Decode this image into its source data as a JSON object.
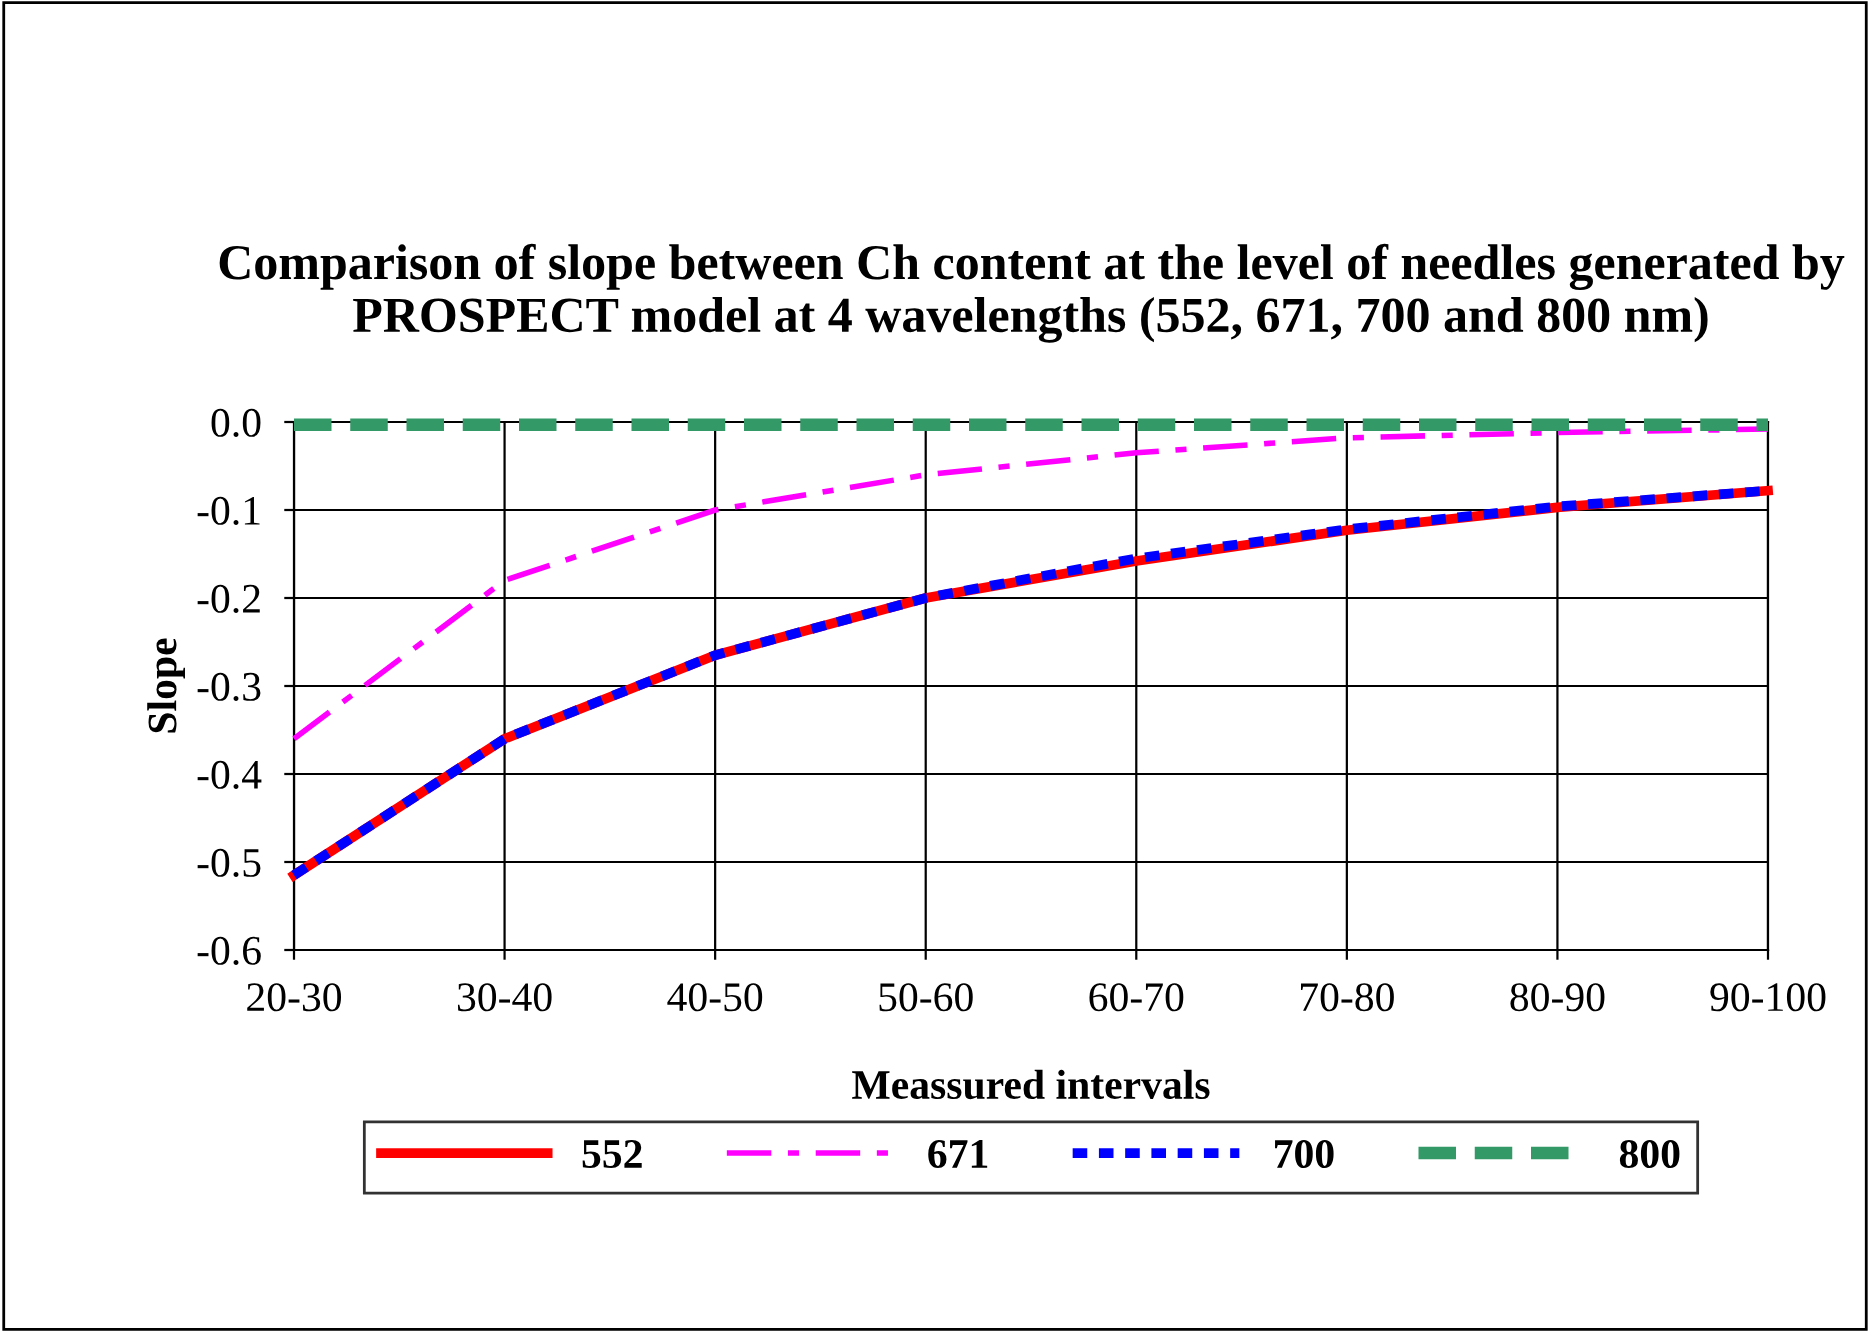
{
  "chart_data": {
    "type": "line",
    "title": "Comparison of slope between Ch content at the level of needles generated by PROSPECT model at 4 wavelengths (552, 671, 700 and 800 nm)",
    "xlabel": "Meassured intervals",
    "ylabel": "Slope",
    "categories": [
      "20-30",
      "30-40",
      "40-50",
      "50-60",
      "60-70",
      "70-80",
      "80-90",
      "90-100"
    ],
    "series": [
      {
        "name": "552",
        "color": "#ff0000",
        "line_style": "solid",
        "values": [
          -0.515,
          -0.36,
          -0.265,
          -0.2,
          -0.158,
          -0.123,
          -0.097,
          -0.078
        ]
      },
      {
        "name": "671",
        "color": "#ff00ff",
        "line_style": "dashed",
        "values": [
          -0.36,
          -0.18,
          -0.1,
          -0.06,
          -0.035,
          -0.018,
          -0.012,
          -0.008
        ]
      },
      {
        "name": "700",
        "color": "#0000ff",
        "line_style": "dotted",
        "values": [
          -0.515,
          -0.36,
          -0.265,
          -0.2,
          -0.155,
          -0.122,
          -0.096,
          -0.078
        ]
      },
      {
        "name": "800",
        "color": "#339966",
        "line_style": "dashed",
        "values": [
          -0.003,
          -0.003,
          -0.003,
          -0.003,
          -0.003,
          -0.003,
          -0.003,
          -0.003
        ]
      }
    ],
    "ylim": [
      -0.6,
      0.0
    ],
    "yticks": [
      {
        "value": -0.6,
        "label": "-0.6"
      },
      {
        "value": -0.5,
        "label": "-0.5"
      },
      {
        "value": -0.4,
        "label": "-0.4"
      },
      {
        "value": -0.3,
        "label": "-0.3"
      },
      {
        "value": -0.2,
        "label": "-0.2"
      },
      {
        "value": -0.1,
        "label": "-0.1"
      },
      {
        "value": 0.0,
        "label": "0.0"
      }
    ],
    "grid": true,
    "legend": "bottom",
    "marker": "none"
  }
}
